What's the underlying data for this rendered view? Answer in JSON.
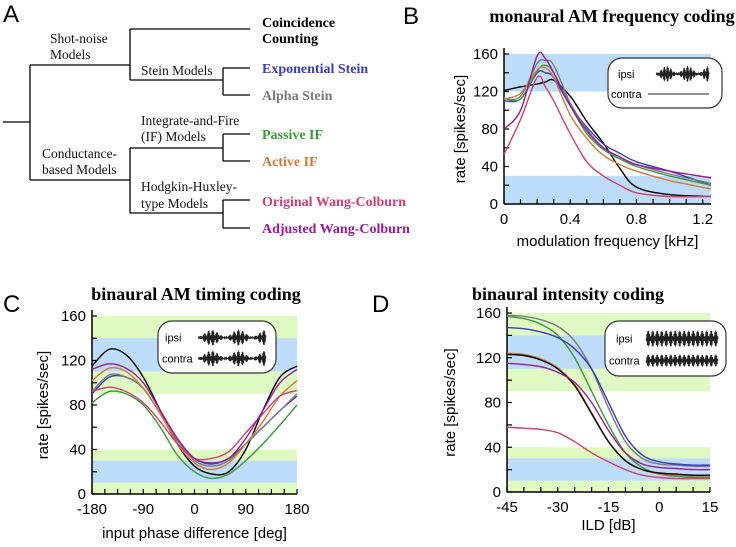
{
  "letters": {
    "a": "A",
    "b": "B",
    "c": "C",
    "d": "D"
  },
  "tree": {
    "nodes": {
      "shot_noise": [
        "Shot-noise",
        "Models"
      ],
      "stein": "Stein Models",
      "conductance": [
        "Conductance-",
        "based Models"
      ],
      "if": [
        "Integrate-and-Fire",
        "(IF) Models"
      ],
      "hh": [
        "Hodgkin-Huxley-",
        "type Models"
      ]
    },
    "leaves": [
      {
        "label": [
          "Coincidence",
          "Counting"
        ],
        "color": "#000000"
      },
      {
        "label": [
          "Exponential Stein"
        ],
        "color": "#3b3bbd"
      },
      {
        "label": [
          "Alpha Stein"
        ],
        "color": "#7a7a7a"
      },
      {
        "label": [
          "Passive IF"
        ],
        "color": "#3a9a3a"
      },
      {
        "label": [
          "Active IF"
        ],
        "color": "#d07a3a"
      },
      {
        "label": [
          "Original Wang-Colburn"
        ],
        "color": "#d04070"
      },
      {
        "label": [
          "Adjusted Wang-Colburn"
        ],
        "color": "#9a1a9a"
      }
    ]
  },
  "colors": {
    "blue_band": "#bcdcfa",
    "green_band": "#def9c2"
  },
  "chart_data": [
    {
      "type": "line",
      "title": "monaural AM frequency coding",
      "xlabel": "modulation frequency [kHz]",
      "ylabel": "rate [spikes/sec]",
      "xlim": [
        0,
        1.25
      ],
      "ylim": [
        0,
        160
      ],
      "xticks": [
        0,
        0.4,
        0.8,
        1.2
      ],
      "xtick_labels": [
        "0",
        "0.4",
        "0.8",
        "1.2"
      ],
      "xminor": 0.1,
      "yticks": [
        0,
        40,
        80,
        120,
        160
      ],
      "ytick_labels": [
        "0",
        "40",
        "80",
        "120",
        "160"
      ],
      "yminor": 20,
      "bands": [
        {
          "from": 120,
          "to": 160,
          "color": "blue"
        },
        {
          "from": 0,
          "to": 30,
          "color": "blue"
        }
      ],
      "inset": {
        "ipsi": "ipsi",
        "contra": "contra",
        "ipsi_wave": "am",
        "contra_wave": "flat"
      },
      "x": [
        0,
        0.1,
        0.2,
        0.25,
        0.3,
        0.4,
        0.5,
        0.6,
        0.7,
        0.8,
        1.0,
        1.25
      ],
      "series": [
        {
          "name": "Coincidence Counting",
          "color": "#000000",
          "values": [
            121,
            125,
            128,
            130,
            132,
            115,
            88,
            65,
            38,
            18,
            10,
            8
          ]
        },
        {
          "name": "Exponential Stein",
          "color": "#3b3bbd",
          "values": [
            110,
            112,
            140,
            140,
            135,
            105,
            82,
            64,
            54,
            45,
            35,
            20
          ]
        },
        {
          "name": "Alpha Stein",
          "color": "#7a7a7a",
          "values": [
            112,
            115,
            150,
            153,
            148,
            108,
            80,
            60,
            50,
            42,
            32,
            22
          ]
        },
        {
          "name": "Passive IF",
          "color": "#3a9a3a",
          "values": [
            113,
            112,
            142,
            148,
            140,
            105,
            75,
            58,
            48,
            40,
            30,
            20
          ]
        },
        {
          "name": "Active IF",
          "color": "#d07a3a",
          "values": [
            112,
            118,
            143,
            145,
            135,
            95,
            70,
            52,
            42,
            35,
            25,
            16
          ]
        },
        {
          "name": "Original Wang-Colburn",
          "color": "#d04070",
          "values": [
            53,
            90,
            135,
            125,
            110,
            75,
            45,
            30,
            20,
            12,
            8,
            8
          ]
        },
        {
          "name": "Adjusted Wang-Colburn",
          "color": "#9a1a9a",
          "values": [
            80,
            100,
            158,
            155,
            140,
            105,
            78,
            60,
            50,
            42,
            35,
            28
          ]
        }
      ]
    },
    {
      "type": "line",
      "title": "binaural AM timing coding",
      "xlabel": "input phase difference [deg]",
      "ylabel": "rate [spikes/sec]",
      "xlim": [
        -180,
        180
      ],
      "ylim": [
        0,
        160
      ],
      "xticks": [
        -180,
        -90,
        0,
        90,
        180
      ],
      "xtick_labels": [
        "-180",
        "-90",
        "0",
        "90",
        "180"
      ],
      "xminor": 22.5,
      "yticks": [
        0,
        40,
        80,
        120,
        160
      ],
      "ytick_labels": [
        "0",
        "40",
        "80",
        "120",
        "160"
      ],
      "yminor": 20,
      "bands": [
        {
          "from": 140,
          "to": 160,
          "color": "green"
        },
        {
          "from": 110,
          "to": 140,
          "color": "blue"
        },
        {
          "from": 90,
          "to": 110,
          "color": "green"
        },
        {
          "from": 30,
          "to": 40,
          "color": "green"
        },
        {
          "from": 10,
          "to": 30,
          "color": "blue"
        },
        {
          "from": 0,
          "to": 10,
          "color": "green"
        }
      ],
      "inset": {
        "ipsi": "ipsi",
        "contra": "contra",
        "ipsi_wave": "am",
        "contra_wave": "am"
      },
      "x": [
        -180,
        -150,
        -120,
        -90,
        -60,
        -30,
        0,
        30,
        60,
        90,
        120,
        150,
        180
      ],
      "series": [
        {
          "name": "Coincidence Counting",
          "color": "#000000",
          "values": [
            115,
            130,
            125,
            105,
            75,
            45,
            25,
            18,
            20,
            40,
            75,
            105,
            115
          ]
        },
        {
          "name": "Exponential Stein",
          "color": "#3b3bbd",
          "values": [
            90,
            105,
            105,
            95,
            72,
            48,
            32,
            27,
            32,
            45,
            60,
            75,
            88
          ]
        },
        {
          "name": "Alpha Stein",
          "color": "#7a7a7a",
          "values": [
            92,
            107,
            105,
            95,
            72,
            48,
            30,
            25,
            30,
            45,
            60,
            75,
            90
          ]
        },
        {
          "name": "Passive IF",
          "color": "#3a9a3a",
          "values": [
            82,
            92,
            90,
            80,
            60,
            35,
            20,
            14,
            18,
            30,
            45,
            62,
            80
          ]
        },
        {
          "name": "Active IF",
          "color": "#d07a3a",
          "values": [
            102,
            113,
            110,
            95,
            72,
            45,
            28,
            22,
            28,
            45,
            65,
            88,
            102
          ]
        },
        {
          "name": "Original Wang-Colburn",
          "color": "#d04070",
          "values": [
            92,
            96,
            92,
            82,
            65,
            45,
            32,
            32,
            38,
            55,
            72,
            88,
            93
          ]
        },
        {
          "name": "Adjusted Wang-Colburn",
          "color": "#9a1a9a",
          "values": [
            112,
            117,
            113,
            100,
            75,
            50,
            32,
            28,
            32,
            50,
            75,
            100,
            112
          ]
        }
      ]
    },
    {
      "type": "line",
      "title": "binaural intensity coding",
      "xlabel": "ILD [dB]",
      "ylabel": "rate [spikes/sec]",
      "xlim": [
        -45,
        15
      ],
      "ylim": [
        0,
        160
      ],
      "xticks": [
        -45,
        -30,
        -15,
        0,
        15
      ],
      "xtick_labels": [
        "-45",
        "-30",
        "-15",
        "0",
        "15"
      ],
      "xminor": 5,
      "yticks": [
        0,
        40,
        80,
        120,
        160
      ],
      "ytick_labels": [
        "0",
        "40",
        "80",
        "120",
        "160"
      ],
      "yminor": 20,
      "bands": [
        {
          "from": 140,
          "to": 160,
          "color": "green"
        },
        {
          "from": 110,
          "to": 140,
          "color": "blue"
        },
        {
          "from": 90,
          "to": 110,
          "color": "green"
        },
        {
          "from": 30,
          "to": 40,
          "color": "green"
        },
        {
          "from": 10,
          "to": 30,
          "color": "blue"
        },
        {
          "from": 0,
          "to": 10,
          "color": "green"
        }
      ],
      "inset": {
        "ipsi": "ipsi",
        "contra": "contra",
        "ipsi_wave": "tone",
        "contra_wave": "tone_small"
      },
      "x": [
        -45,
        -40,
        -35,
        -30,
        -25,
        -20,
        -15,
        -10,
        -5,
        0,
        5,
        10,
        15
      ],
      "series": [
        {
          "name": "Alpha Stein",
          "color": "#7a7a7a",
          "values": [
            158,
            157,
            154,
            148,
            135,
            110,
            75,
            45,
            30,
            25,
            24,
            23,
            23
          ]
        },
        {
          "name": "Passive IF",
          "color": "#3a9a3a",
          "values": [
            157,
            155,
            150,
            140,
            120,
            90,
            60,
            35,
            22,
            16,
            14,
            13,
            13
          ]
        },
        {
          "name": "Exponential Stein",
          "color": "#3b3bbd",
          "values": [
            147,
            146,
            143,
            138,
            128,
            110,
            80,
            50,
            33,
            27,
            25,
            24,
            24
          ]
        },
        {
          "name": "Active IF",
          "color": "#d07a3a",
          "values": [
            124,
            123,
            119,
            111,
            96,
            71,
            45,
            28,
            20,
            16,
            15,
            14,
            14
          ]
        },
        {
          "name": "Coincidence Counting",
          "color": "#000000",
          "values": [
            123,
            122,
            118,
            110,
            95,
            70,
            45,
            28,
            20,
            17,
            16,
            15,
            15
          ]
        },
        {
          "name": "Adjusted Wang-Colburn",
          "color": "#9a1a9a",
          "values": [
            115,
            114,
            112,
            107,
            98,
            80,
            55,
            35,
            25,
            22,
            21,
            20,
            20
          ]
        },
        {
          "name": "Original Wang-Colburn",
          "color": "#d04070",
          "values": [
            58,
            57,
            56,
            53,
            45,
            35,
            27,
            20,
            15,
            13,
            12,
            12,
            12
          ]
        }
      ]
    }
  ]
}
